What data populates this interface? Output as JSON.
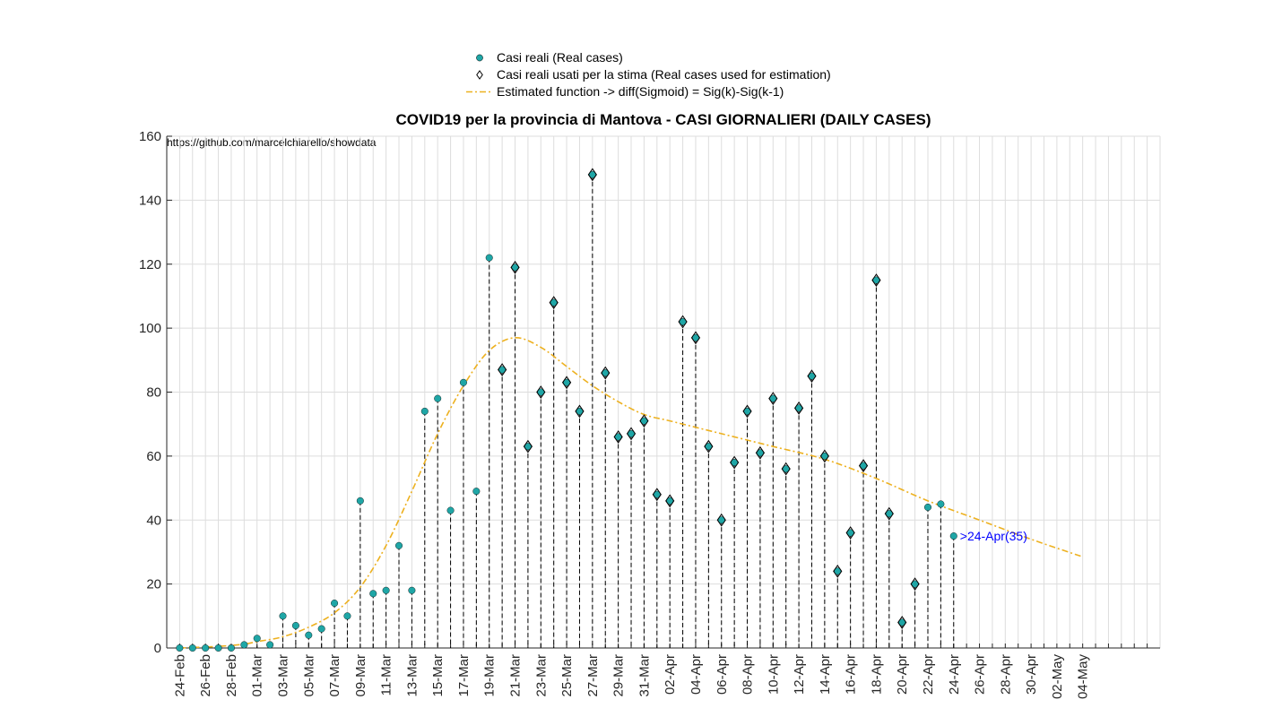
{
  "colors": {
    "real_case_fill": "#1fa6a6",
    "estimate_line": "#edb120",
    "annotation": "#0000ff",
    "grid": "#dddddd",
    "stem": "#000000"
  },
  "source_url": "https://github.com/marcelchiarello/showdata",
  "chart_data": {
    "type": "scatter",
    "title": "COVID19 per la provincia di Mantova - CASI GIORNALIERI (DAILY CASES)",
    "xlabel": "",
    "ylabel": "",
    "ylim": [
      0,
      160
    ],
    "xlim": [
      "2020-02-23",
      "2020-05-10"
    ],
    "grid": "on",
    "legend_position": "top-center",
    "y_ticks": [
      0,
      20,
      40,
      60,
      80,
      100,
      120,
      140,
      160
    ],
    "x_tick_labels": [
      "24-Feb",
      "26-Feb",
      "28-Feb",
      "01-Mar",
      "03-Mar",
      "05-Mar",
      "07-Mar",
      "09-Mar",
      "11-Mar",
      "13-Mar",
      "15-Mar",
      "17-Mar",
      "19-Mar",
      "21-Mar",
      "23-Mar",
      "25-Mar",
      "27-Mar",
      "29-Mar",
      "31-Mar",
      "02-Apr",
      "04-Apr",
      "06-Apr",
      "08-Apr",
      "10-Apr",
      "12-Apr",
      "14-Apr",
      "16-Apr",
      "18-Apr",
      "20-Apr",
      "22-Apr",
      "24-Apr",
      "26-Apr",
      "28-Apr",
      "30-Apr",
      "02-May",
      "04-May"
    ],
    "legend": [
      {
        "name": "Casi reali (Real cases)",
        "symbol": "dot"
      },
      {
        "name": "Casi reali usati per la stima (Real cases used for estimation)",
        "symbol": "diamond"
      },
      {
        "name": "Estimated function -> diff(Sigmoid) = Sig(k)-Sig(k-1)",
        "symbol": "dashdot-line"
      }
    ],
    "series": [
      {
        "name": "Casi reali (Real cases)",
        "x": [
          "2020-02-24",
          "2020-02-25",
          "2020-02-26",
          "2020-02-27",
          "2020-02-28",
          "2020-02-29",
          "2020-03-01",
          "2020-03-02",
          "2020-03-03",
          "2020-03-04",
          "2020-03-05",
          "2020-03-06",
          "2020-03-07",
          "2020-03-08",
          "2020-03-09",
          "2020-03-10",
          "2020-03-11",
          "2020-03-12",
          "2020-03-13",
          "2020-03-14",
          "2020-03-15",
          "2020-03-16",
          "2020-03-17",
          "2020-03-18",
          "2020-03-19",
          "2020-03-20",
          "2020-03-21",
          "2020-03-22",
          "2020-03-23",
          "2020-03-24",
          "2020-03-25",
          "2020-03-26",
          "2020-03-27",
          "2020-03-28",
          "2020-03-29",
          "2020-03-30",
          "2020-03-31",
          "2020-04-01",
          "2020-04-02",
          "2020-04-03",
          "2020-04-04",
          "2020-04-05",
          "2020-04-06",
          "2020-04-07",
          "2020-04-08",
          "2020-04-09",
          "2020-04-10",
          "2020-04-11",
          "2020-04-12",
          "2020-04-13",
          "2020-04-14",
          "2020-04-15",
          "2020-04-16",
          "2020-04-17",
          "2020-04-18",
          "2020-04-19",
          "2020-04-20",
          "2020-04-21",
          "2020-04-22",
          "2020-04-23",
          "2020-04-24"
        ],
        "values": [
          0,
          0,
          0,
          0,
          0,
          1,
          3,
          1,
          10,
          7,
          4,
          6,
          14,
          10,
          46,
          17,
          18,
          32,
          18,
          74,
          78,
          43,
          83,
          49,
          122,
          87,
          119,
          63,
          80,
          108,
          83,
          74,
          148,
          86,
          66,
          67,
          71,
          48,
          46,
          102,
          97,
          63,
          40,
          58,
          74,
          61,
          78,
          56,
          75,
          85,
          60,
          24,
          36,
          57,
          115,
          42,
          8,
          20,
          44,
          45,
          35
        ]
      },
      {
        "name": "Casi reali usati per la stima (Real cases used for estimation)",
        "x": [
          "2020-03-20",
          "2020-03-21",
          "2020-03-22",
          "2020-03-23",
          "2020-03-24",
          "2020-03-25",
          "2020-03-26",
          "2020-03-27",
          "2020-03-28",
          "2020-03-29",
          "2020-03-30",
          "2020-03-31",
          "2020-04-01",
          "2020-04-02",
          "2020-04-03",
          "2020-04-04",
          "2020-04-05",
          "2020-04-06",
          "2020-04-07",
          "2020-04-08",
          "2020-04-09",
          "2020-04-10",
          "2020-04-11",
          "2020-04-12",
          "2020-04-13",
          "2020-04-14",
          "2020-04-15",
          "2020-04-16",
          "2020-04-17",
          "2020-04-18",
          "2020-04-19",
          "2020-04-20",
          "2020-04-21"
        ],
        "values": [
          87,
          119,
          63,
          80,
          108,
          83,
          74,
          148,
          86,
          66,
          67,
          71,
          48,
          46,
          102,
          97,
          63,
          40,
          58,
          74,
          61,
          78,
          56,
          75,
          85,
          60,
          24,
          36,
          57,
          115,
          42,
          8,
          20
        ]
      },
      {
        "name": "Estimated function -> diff(Sigmoid) = Sig(k)-Sig(k-1)",
        "x": [
          "2020-02-24",
          "2020-02-27",
          "2020-02-29",
          "2020-03-01",
          "2020-03-03",
          "2020-03-05",
          "2020-03-07",
          "2020-03-09",
          "2020-03-11",
          "2020-03-13",
          "2020-03-15",
          "2020-03-17",
          "2020-03-19",
          "2020-03-21",
          "2020-03-23",
          "2020-03-25",
          "2020-03-27",
          "2020-03-29",
          "2020-03-31",
          "2020-04-02",
          "2020-04-06",
          "2020-04-10",
          "2020-04-14",
          "2020-04-18",
          "2020-04-22",
          "2020-04-26",
          "2020-04-30",
          "2020-05-04"
        ],
        "values": [
          0,
          0.5,
          1.2,
          2,
          3.5,
          6.5,
          11,
          19,
          32,
          49,
          67,
          82,
          93,
          97,
          94,
          88,
          82,
          77,
          73,
          71,
          67,
          63,
          59,
          53,
          46,
          40,
          34,
          28.5
        ]
      }
    ],
    "annotations": [
      {
        "text": ">24-Apr(35)",
        "x": "2020-04-24",
        "y": 35
      }
    ]
  }
}
